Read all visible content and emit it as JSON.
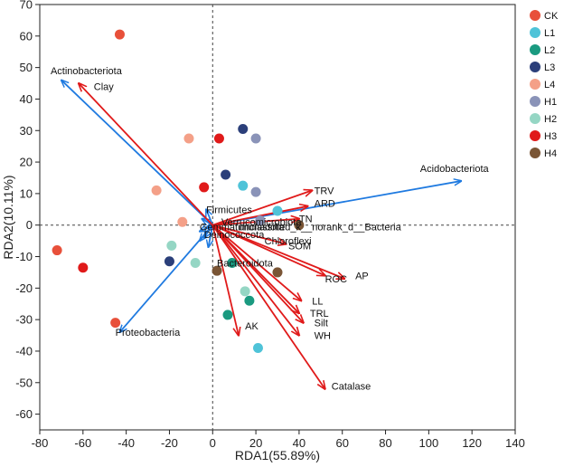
{
  "chart_data": {
    "type": "scatter",
    "subtype": "RDA biplot",
    "xlabel": "RDA1(55.89%)",
    "ylabel": "RDA2(10.11%)",
    "xlim": [
      -80,
      140
    ],
    "ylim": [
      -65,
      70
    ],
    "xticks": [
      -80,
      -60,
      -40,
      -20,
      0,
      20,
      40,
      60,
      80,
      100,
      120,
      140
    ],
    "yticks": [
      -60,
      -50,
      -40,
      -30,
      -20,
      -10,
      0,
      10,
      20,
      30,
      40,
      50,
      60,
      70
    ],
    "groups": [
      {
        "name": "CK",
        "color": "#e8503a",
        "points": [
          [
            -43,
            60.5
          ],
          [
            -72,
            -8
          ],
          [
            -45,
            -31
          ]
        ]
      },
      {
        "name": "L1",
        "color": "#4fc3d8",
        "points": [
          [
            14,
            12.5
          ],
          [
            30,
            4.5
          ],
          [
            21,
            -39
          ]
        ]
      },
      {
        "name": "L2",
        "color": "#1a9a80",
        "points": [
          [
            9,
            -12
          ],
          [
            17,
            -24
          ],
          [
            7,
            -28.5
          ]
        ]
      },
      {
        "name": "L3",
        "color": "#2b3f7a",
        "points": [
          [
            14,
            30.5
          ],
          [
            6,
            16
          ],
          [
            -20,
            -11.5
          ]
        ]
      },
      {
        "name": "L4",
        "color": "#f4a088",
        "points": [
          [
            -11,
            27.5
          ],
          [
            -26,
            11
          ],
          [
            -14,
            1
          ]
        ]
      },
      {
        "name": "H1",
        "color": "#8a93b8",
        "points": [
          [
            20,
            27.5
          ],
          [
            20,
            10.5
          ],
          [
            22,
            1.5
          ]
        ]
      },
      {
        "name": "H2",
        "color": "#95d6c4",
        "points": [
          [
            -19,
            -6.5
          ],
          [
            -8,
            -12
          ],
          [
            15,
            -21
          ]
        ]
      },
      {
        "name": "H3",
        "color": "#e01a1a",
        "points": [
          [
            3,
            27.5
          ],
          [
            -4,
            12
          ],
          [
            -60,
            -13.5
          ]
        ]
      },
      {
        "name": "H4",
        "color": "#7a5535",
        "points": [
          [
            2,
            -14.5
          ],
          [
            30,
            -15
          ],
          [
            40,
            0
          ]
        ]
      }
    ],
    "species_arrows": [
      {
        "label": "Actinobacteriota",
        "end": [
          -70,
          46
        ]
      },
      {
        "label": "Acidobacteriota",
        "end": [
          115,
          14
        ]
      },
      {
        "label": "Proteobacteria",
        "end": [
          -43,
          -34
        ]
      },
      {
        "label": "Firmicutes",
        "end": [
          -3,
          5
        ]
      },
      {
        "label": "Verrucomicrobiota",
        "end": [
          -5,
          2
        ]
      },
      {
        "label": "Gemmatimonadota",
        "end": [
          -6,
          -2
        ]
      },
      {
        "label": "Deinococcota",
        "end": [
          -4,
          -4
        ]
      },
      {
        "label": "Bacteroidota",
        "end": [
          -6,
          -5
        ]
      },
      {
        "label": "Chloroflexi",
        "end": [
          -2,
          -7
        ]
      },
      {
        "label": "unclassified_k_norank_d__Bacteria",
        "end": [
          -3,
          -1
        ]
      }
    ],
    "env_arrows": [
      {
        "label": "Clay",
        "end": [
          -62,
          45
        ]
      },
      {
        "label": "TRV",
        "end": [
          46,
          11
        ]
      },
      {
        "label": "ARD",
        "end": [
          44,
          6
        ]
      },
      {
        "label": "TN",
        "end": [
          40,
          2
        ]
      },
      {
        "label": "SOM",
        "end": [
          34,
          -6
        ]
      },
      {
        "label": "ROC",
        "end": [
          52,
          -16
        ]
      },
      {
        "label": "AP",
        "end": [
          61,
          -17
        ]
      },
      {
        "label": "LL",
        "end": [
          41,
          -24
        ]
      },
      {
        "label": "TRL",
        "end": [
          40,
          -28
        ]
      },
      {
        "label": "Silt",
        "end": [
          42,
          -31
        ]
      },
      {
        "label": "WH",
        "end": [
          40,
          -35
        ]
      },
      {
        "label": "AK",
        "end": [
          12,
          -35
        ]
      },
      {
        "label": "Catalase",
        "end": [
          52,
          -52
        ]
      }
    ],
    "annotations": [
      {
        "text": "Clay",
        "at": [
          -55,
          44
        ]
      },
      {
        "text": "Actinobacteriota",
        "at": [
          -75,
          49
        ]
      },
      {
        "text": "Acidobacteriota",
        "at": [
          96,
          18
        ]
      },
      {
        "text": "Proteobacteria",
        "at": [
          -45,
          -34
        ]
      },
      {
        "text": "Firmicutes",
        "at": [
          -3,
          5
        ]
      },
      {
        "text": "Verrucomicrobiota",
        "at": [
          4,
          1
        ]
      },
      {
        "text": "Gemmatimonadota",
        "at": [
          -6,
          -0.5
        ]
      },
      {
        "text": "unclassified_k__norank_d__Bacteria",
        "at": [
          12,
          -0.5
        ]
      },
      {
        "text": "Deinococcota",
        "at": [
          -4,
          -3
        ]
      },
      {
        "text": "TN",
        "at": [
          40,
          2
        ]
      },
      {
        "text": "TRV",
        "at": [
          47,
          11
        ]
      },
      {
        "text": "ARD",
        "at": [
          47,
          7
        ]
      },
      {
        "text": "SOM",
        "at": [
          35,
          -6.5
        ]
      },
      {
        "text": "Chloroflexi",
        "at": [
          24,
          -5
        ]
      },
      {
        "text": "Bacteroidota",
        "at": [
          2,
          -12
        ]
      },
      {
        "text": "ROC",
        "at": [
          52,
          -17
        ]
      },
      {
        "text": "AP",
        "at": [
          66,
          -16
        ]
      },
      {
        "text": "LL",
        "at": [
          46,
          -24
        ]
      },
      {
        "text": "TRL",
        "at": [
          45,
          -28
        ]
      },
      {
        "text": "Silt",
        "at": [
          47,
          -31
        ]
      },
      {
        "text": "WH",
        "at": [
          47,
          -35
        ]
      },
      {
        "text": "AK",
        "at": [
          15,
          -32
        ]
      },
      {
        "text": "Catalase",
        "at": [
          55,
          -51
        ]
      }
    ],
    "colors": {
      "species_arrow": "#1f7ae0",
      "env_arrow": "#e01a1a"
    },
    "legend_position": "top-right",
    "reference_lines": "dashed lines at x=0 and y=0"
  }
}
